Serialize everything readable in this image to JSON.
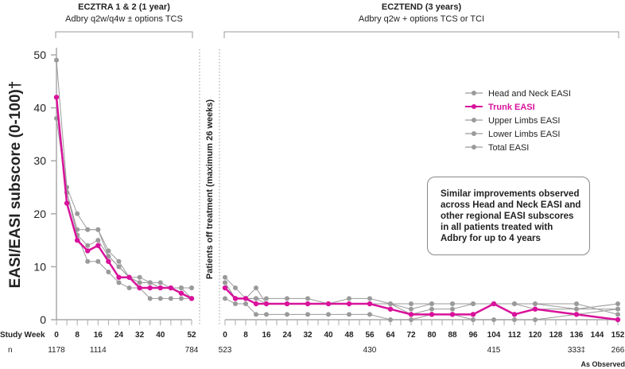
{
  "chart_data": {
    "type": "line",
    "ylabel": "EASI/EASI subscore (0-100)†",
    "ylim": [
      0,
      50
    ],
    "yticks": [
      0,
      10,
      20,
      30,
      40,
      50
    ],
    "xlabel": "Study Week",
    "n_label": "n",
    "footnote": "As Observed",
    "off_treatment_label": "Patients off treatment (maximum 26 weeks)",
    "callout": "Similar improvements observed across Head and Neck EASI and other regional EASI subscores in all patients treated with Adbry for up to 4 years",
    "colors": {
      "highlight": "#d9129b",
      "other": "#9a9a9a",
      "axis": "#aaaaaa"
    },
    "legend": [
      "Head and Neck EASI",
      "Trunk EASI",
      "Upper Limbs EASI",
      "Lower Limbs EASI",
      "Total EASI"
    ],
    "panels": [
      {
        "title": "ECZTRA 1 & 2 (1 year)",
        "subtitle": "Adbry q2w/q4w ± options TCS",
        "xlim": [
          0,
          52
        ],
        "xtick_labels": [
          0,
          8,
          16,
          24,
          32,
          40,
          52
        ],
        "n_values": [
          {
            "week": 0,
            "n": "1178"
          },
          {
            "week": 16,
            "n": "1114"
          },
          {
            "week": 52,
            "n": "784"
          }
        ],
        "x": [
          0,
          4,
          8,
          12,
          16,
          20,
          24,
          28,
          32,
          36,
          40,
          44,
          48,
          52
        ],
        "series": [
          {
            "name": "Head and Neck EASI",
            "values": [
              49,
              25,
              20,
              17,
              17,
              13,
              11,
              8,
              8,
              7,
              7,
              6,
              6,
              6
            ]
          },
          {
            "name": "Trunk EASI",
            "values": [
              42,
              22,
              15,
              13,
              14,
              11,
              8,
              8,
              6,
              6,
              6,
              6,
              5,
              4
            ]
          },
          {
            "name": "Upper Limbs EASI",
            "values": [
              38,
              24,
              17,
              17,
              17,
              12,
              10,
              8,
              7,
              7,
              6,
              6,
              6,
              4
            ]
          },
          {
            "name": "Lower Limbs EASI",
            "values": [
              42,
              24,
              16,
              11,
              11,
              9,
              7,
              6,
              6,
              4,
              4,
              4,
              4,
              4
            ]
          },
          {
            "name": "Total EASI",
            "values": [
              42,
              24,
              16,
              14,
              15,
              12,
              10,
              8,
              7,
              7,
              6,
              6,
              6,
              6
            ]
          }
        ]
      },
      {
        "title": "ECZTEND (3 years)",
        "subtitle": "Adbry q2w + options TCS or TCI",
        "xlim": [
          0,
          152
        ],
        "xtick_labels": [
          0,
          8,
          16,
          24,
          32,
          40,
          48,
          56,
          64,
          72,
          80,
          88,
          96,
          104,
          112,
          120,
          128,
          136,
          144,
          152
        ],
        "n_values": [
          {
            "week": 0,
            "n": "523"
          },
          {
            "week": 56,
            "n": "430"
          },
          {
            "week": 104,
            "n": "415"
          },
          {
            "week": 136,
            "n": "333‡"
          },
          {
            "week": 152,
            "n": "266"
          }
        ],
        "x": [
          0,
          4,
          8,
          12,
          16,
          24,
          32,
          40,
          48,
          56,
          64,
          72,
          80,
          88,
          96,
          104,
          112,
          120,
          136,
          152
        ],
        "series": [
          {
            "name": "Head and Neck EASI",
            "values": [
              8,
              6,
              4,
              4,
              4,
              4,
              4,
              3,
              4,
              4,
              3,
              2,
              3,
              3,
              3,
              3,
              3,
              3,
              3,
              1
            ]
          },
          {
            "name": "Trunk EASI",
            "values": [
              6,
              4,
              4,
              3,
              3,
              3,
              3,
              3,
              3,
              3,
              2,
              1,
              1,
              1,
              1,
              3,
              1,
              2,
              1,
              0
            ]
          },
          {
            "name": "Upper Limbs EASI",
            "values": [
              7,
              4,
              4,
              6,
              3,
              3,
              3,
              3,
              3,
              3,
              3,
              3,
              3,
              3,
              3,
              3,
              3,
              3,
              2,
              3
            ]
          },
          {
            "name": "Lower Limbs EASI",
            "values": [
              4,
              3,
              3,
              1,
              1,
              1,
              1,
              1,
              1,
              1,
              0,
              0,
              1,
              1,
              0,
              0,
              0,
              0,
              1,
              2
            ]
          },
          {
            "name": "Total EASI",
            "values": [
              7,
              4,
              4,
              4,
              3,
              3,
              3,
              3,
              3,
              3,
              3,
              1,
              2,
              2,
              3,
              3,
              3,
              2,
              2,
              2
            ]
          }
        ]
      }
    ]
  }
}
